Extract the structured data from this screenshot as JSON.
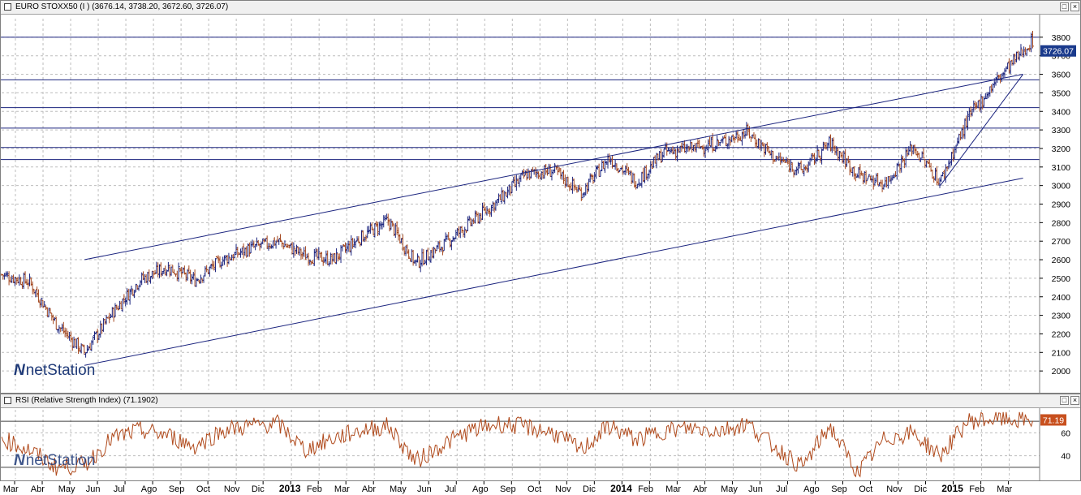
{
  "price_panel": {
    "title": "EURO STOXX50 (I ) (3676.14, 3738.20, 3672.60, 3726.07)",
    "last_value_label": "3726.07",
    "colors": {
      "up": "#1a237e",
      "down": "#a3471f",
      "last_bg": "#1a3a8c"
    }
  },
  "rsi_panel": {
    "title": "RSI (Relative Strength Index) (71.1902)",
    "last_value_label": "71.19",
    "colors": {
      "line": "#b04a1c",
      "last_bg": "#c8501e"
    }
  },
  "logo": {
    "text": "netStation",
    "mark": "N"
  },
  "window_buttons": {
    "minimize": "□",
    "close": "×"
  },
  "time_axis": {
    "labels": [
      "Mar",
      "Abr",
      "May",
      "Jun",
      "Jul",
      "Ago",
      "Sep",
      "Oct",
      "Nov",
      "Dic",
      "2013",
      "Feb",
      "Mar",
      "Abr",
      "May",
      "Jun",
      "Jul",
      "Ago",
      "Sep",
      "Oct",
      "Nov",
      "Dic",
      "2014",
      "Feb",
      "Mar",
      "Abr",
      "May",
      "Jun",
      "Jul",
      "Ago",
      "Sep",
      "Oct",
      "Nov",
      "Dic",
      "2015",
      "Feb",
      "Mar"
    ],
    "year_labels": [
      "2013",
      "2014",
      "2015"
    ]
  },
  "chart_data": [
    {
      "type": "bar",
      "name": "EURO STOXX50",
      "style": "ohlc",
      "ohlc_last": {
        "open": 3676.14,
        "high": 3738.2,
        "low": 3672.6,
        "close": 3726.07
      },
      "x_months": [
        0,
        1,
        2,
        3,
        4,
        5,
        6,
        7,
        8,
        9,
        10,
        11,
        12,
        13,
        14,
        15,
        16,
        17,
        18,
        19,
        20,
        21,
        22,
        23,
        24,
        25,
        26,
        27,
        28,
        29,
        30,
        31,
        32,
        33,
        34,
        35,
        36,
        37
      ],
      "close_monthly": [
        2520,
        2480,
        2250,
        2100,
        2310,
        2490,
        2560,
        2490,
        2600,
        2660,
        2700,
        2620,
        2600,
        2720,
        2810,
        2580,
        2680,
        2800,
        2920,
        3060,
        3080,
        2960,
        3150,
        3020,
        3180,
        3200,
        3230,
        3290,
        3150,
        3080,
        3230,
        3060,
        3010,
        3210,
        3020,
        3360,
        3560,
        3726
      ],
      "ylim": [
        1900,
        3900
      ],
      "yticks": [
        2000,
        2100,
        2200,
        2300,
        2400,
        2500,
        2600,
        2700,
        2800,
        2900,
        3000,
        3100,
        3200,
        3300,
        3400,
        3500,
        3600,
        3700,
        3800
      ],
      "support_resistance_levels": [
        3800,
        3570,
        3420,
        3310,
        3205,
        3140
      ],
      "channel_upper": {
        "from": {
          "month": 3.0,
          "value": 2600
        },
        "to": {
          "month": 37.0,
          "value": 3600
        }
      },
      "channel_lower": {
        "from": {
          "month": 3.0,
          "value": 2030
        },
        "to": {
          "month": 37.0,
          "value": 3040
        }
      },
      "trend_line": {
        "from": {
          "month": 34.0,
          "value": 3000
        },
        "to": {
          "month": 37.0,
          "value": 3600
        }
      },
      "grid": true
    },
    {
      "type": "line",
      "name": "RSI",
      "value_last": 71.1902,
      "ylim": [
        20,
        80
      ],
      "yticks": [
        40,
        60
      ],
      "levels": [
        70,
        30
      ],
      "monthly_rsi": [
        55,
        45,
        30,
        32,
        55,
        62,
        58,
        48,
        62,
        66,
        68,
        45,
        55,
        62,
        66,
        35,
        50,
        62,
        68,
        65,
        60,
        45,
        66,
        54,
        62,
        64,
        62,
        68,
        48,
        30,
        66,
        25,
        55,
        60,
        40,
        70,
        72,
        71
      ],
      "grid": true
    }
  ]
}
